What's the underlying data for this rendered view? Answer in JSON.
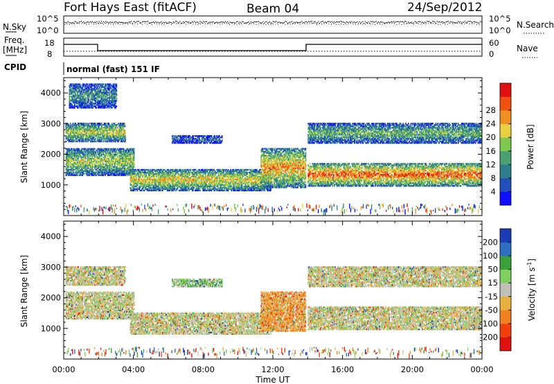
{
  "header": {
    "station": "Fort Hays East (fitACF)",
    "beam": "Beam 04",
    "date": "24/Sep/2012"
  },
  "noise_panel": {
    "left_label": "N.Sky",
    "left_ticks": [
      "10^5",
      "10^0"
    ],
    "right_label": "N.Search",
    "right_ticks": [
      "10^5",
      "10^0"
    ]
  },
  "freq_panel": {
    "left_label_1": "Freq.",
    "left_label_2": "[MHz]",
    "left_ticks": [
      "18",
      "8"
    ],
    "right_label": "Nave",
    "right_ticks": [
      "60",
      "0"
    ],
    "cpid_label": "CPID",
    "cpid_text": "normal (fast) 151 IF"
  },
  "chart_data": [
    {
      "type": "heatmap",
      "name": "power",
      "ylabel": "Slant Range [km]",
      "yticks": [
        1000,
        2000,
        3000,
        4000
      ],
      "ylim": [
        0,
        4500
      ],
      "xlim": [
        0,
        24
      ],
      "colorbar": {
        "label": "Power [dB]",
        "ticks": [
          "4",
          "8",
          "12",
          "16",
          "20",
          "24",
          "28"
        ],
        "colors": [
          "#1010ff",
          "#2050b8",
          "#2e7e8e",
          "#4aa070",
          "#80c850",
          "#e8d040",
          "#f09020",
          "#f05010",
          "#e01010"
        ]
      },
      "bands": [
        {
          "x0": 0.1,
          "x1": 4.0,
          "y0": 1300,
          "y1": 2200,
          "level": 0.55
        },
        {
          "x0": 0.1,
          "x1": 3.5,
          "y0": 2400,
          "y1": 3000,
          "level": 0.6
        },
        {
          "x0": 0.3,
          "x1": 3.0,
          "y0": 3500,
          "y1": 4300,
          "level": 0.35
        },
        {
          "x0": 3.8,
          "x1": 11.9,
          "y0": 800,
          "y1": 1500,
          "level": 0.65
        },
        {
          "x0": 6.2,
          "x1": 9.1,
          "y0": 2350,
          "y1": 2600,
          "level": 0.2
        },
        {
          "x0": 11.3,
          "x1": 13.9,
          "y0": 900,
          "y1": 2200,
          "level": 0.75
        },
        {
          "x0": 14.0,
          "x1": 24.0,
          "y0": 950,
          "y1": 1700,
          "level": 0.85
        },
        {
          "x0": 14.0,
          "x1": 24.0,
          "y0": 2350,
          "y1": 3000,
          "level": 0.45
        }
      ]
    },
    {
      "type": "heatmap",
      "name": "velocity",
      "ylabel": "Slant Range [km]",
      "yticks": [
        1000,
        2000,
        3000,
        4000
      ],
      "ylim": [
        0,
        4500
      ],
      "xlim": [
        0,
        24
      ],
      "xticks": [
        "00:00",
        "04:00",
        "08:00",
        "12:00",
        "16:00",
        "20:00",
        "00:00"
      ],
      "xlabel": "Time UT",
      "colorbar": {
        "label": "Velocity [m s",
        "label_sup": "-1",
        "label_end": "]",
        "ticks": [
          "200",
          "100",
          "50",
          "15",
          "-15",
          "-50",
          "-100",
          "-200"
        ],
        "colors": [
          "#1a3cb4",
          "#2e6ec0",
          "#3aa03a",
          "#80d060",
          "#c0c0b8",
          "#e8b040",
          "#f08020",
          "#f04010",
          "#e01010"
        ]
      },
      "bands": [
        {
          "x0": 0.1,
          "x1": 4.0,
          "y0": 1300,
          "y1": 2200,
          "level": 0.5
        },
        {
          "x0": 0.1,
          "x1": 3.5,
          "y0": 2400,
          "y1": 3000,
          "level": 0.5
        },
        {
          "x0": 3.8,
          "x1": 11.9,
          "y0": 800,
          "y1": 1500,
          "level": 0.5
        },
        {
          "x0": 6.2,
          "x1": 9.1,
          "y0": 2350,
          "y1": 2600,
          "level": 0.6
        },
        {
          "x0": 11.3,
          "x1": 13.9,
          "y0": 900,
          "y1": 2200,
          "level": 0.35
        },
        {
          "x0": 14.0,
          "x1": 24.0,
          "y0": 950,
          "y1": 1700,
          "level": 0.5
        },
        {
          "x0": 14.0,
          "x1": 24.0,
          "y0": 2350,
          "y1": 3000,
          "level": 0.5
        }
      ]
    }
  ]
}
